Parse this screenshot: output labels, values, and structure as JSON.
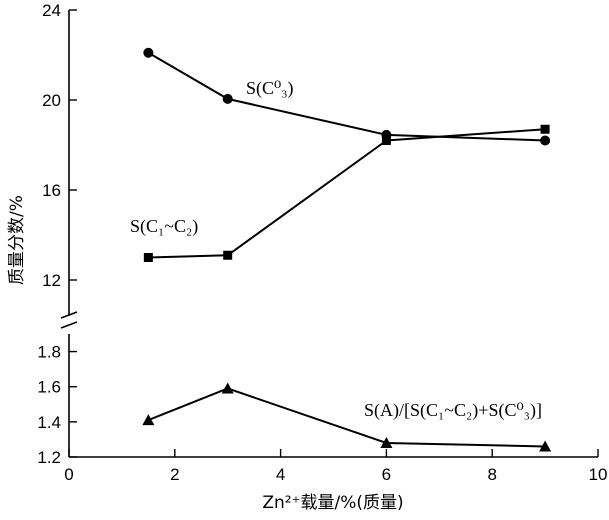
{
  "chart_data": {
    "type": "line",
    "xlabel": "Zn²⁺载量/%(质量)",
    "ylabel": "质量分数/%",
    "xlim": [
      0,
      10
    ],
    "x_ticks": [
      0,
      2,
      4,
      6,
      8,
      10
    ],
    "y_upper": {
      "range": [
        10.4,
        24
      ],
      "ticks": [
        12,
        16,
        20,
        24
      ]
    },
    "y_lower": {
      "range": [
        1.2,
        1.9
      ],
      "ticks": [
        1.2,
        1.4,
        1.6,
        1.8
      ]
    },
    "axis_break": true,
    "grid": false,
    "series": [
      {
        "name": "S(C⁰₃)",
        "marker": "circle",
        "panel": "upper",
        "x": [
          1.5,
          3,
          6,
          9
        ],
        "y": [
          22.1,
          20.05,
          18.45,
          18.2
        ]
      },
      {
        "name": "S(C₁~C₂)",
        "marker": "square",
        "panel": "upper",
        "x": [
          1.5,
          3,
          6,
          9
        ],
        "y": [
          13.0,
          13.1,
          18.2,
          18.7
        ]
      },
      {
        "name": "S(A)/[S(C₁~C₂)+S(C⁰₃)]",
        "marker": "triangle",
        "panel": "lower",
        "x": [
          1.5,
          3,
          6,
          9
        ],
        "y": [
          1.41,
          1.59,
          1.28,
          1.26
        ]
      }
    ]
  }
}
